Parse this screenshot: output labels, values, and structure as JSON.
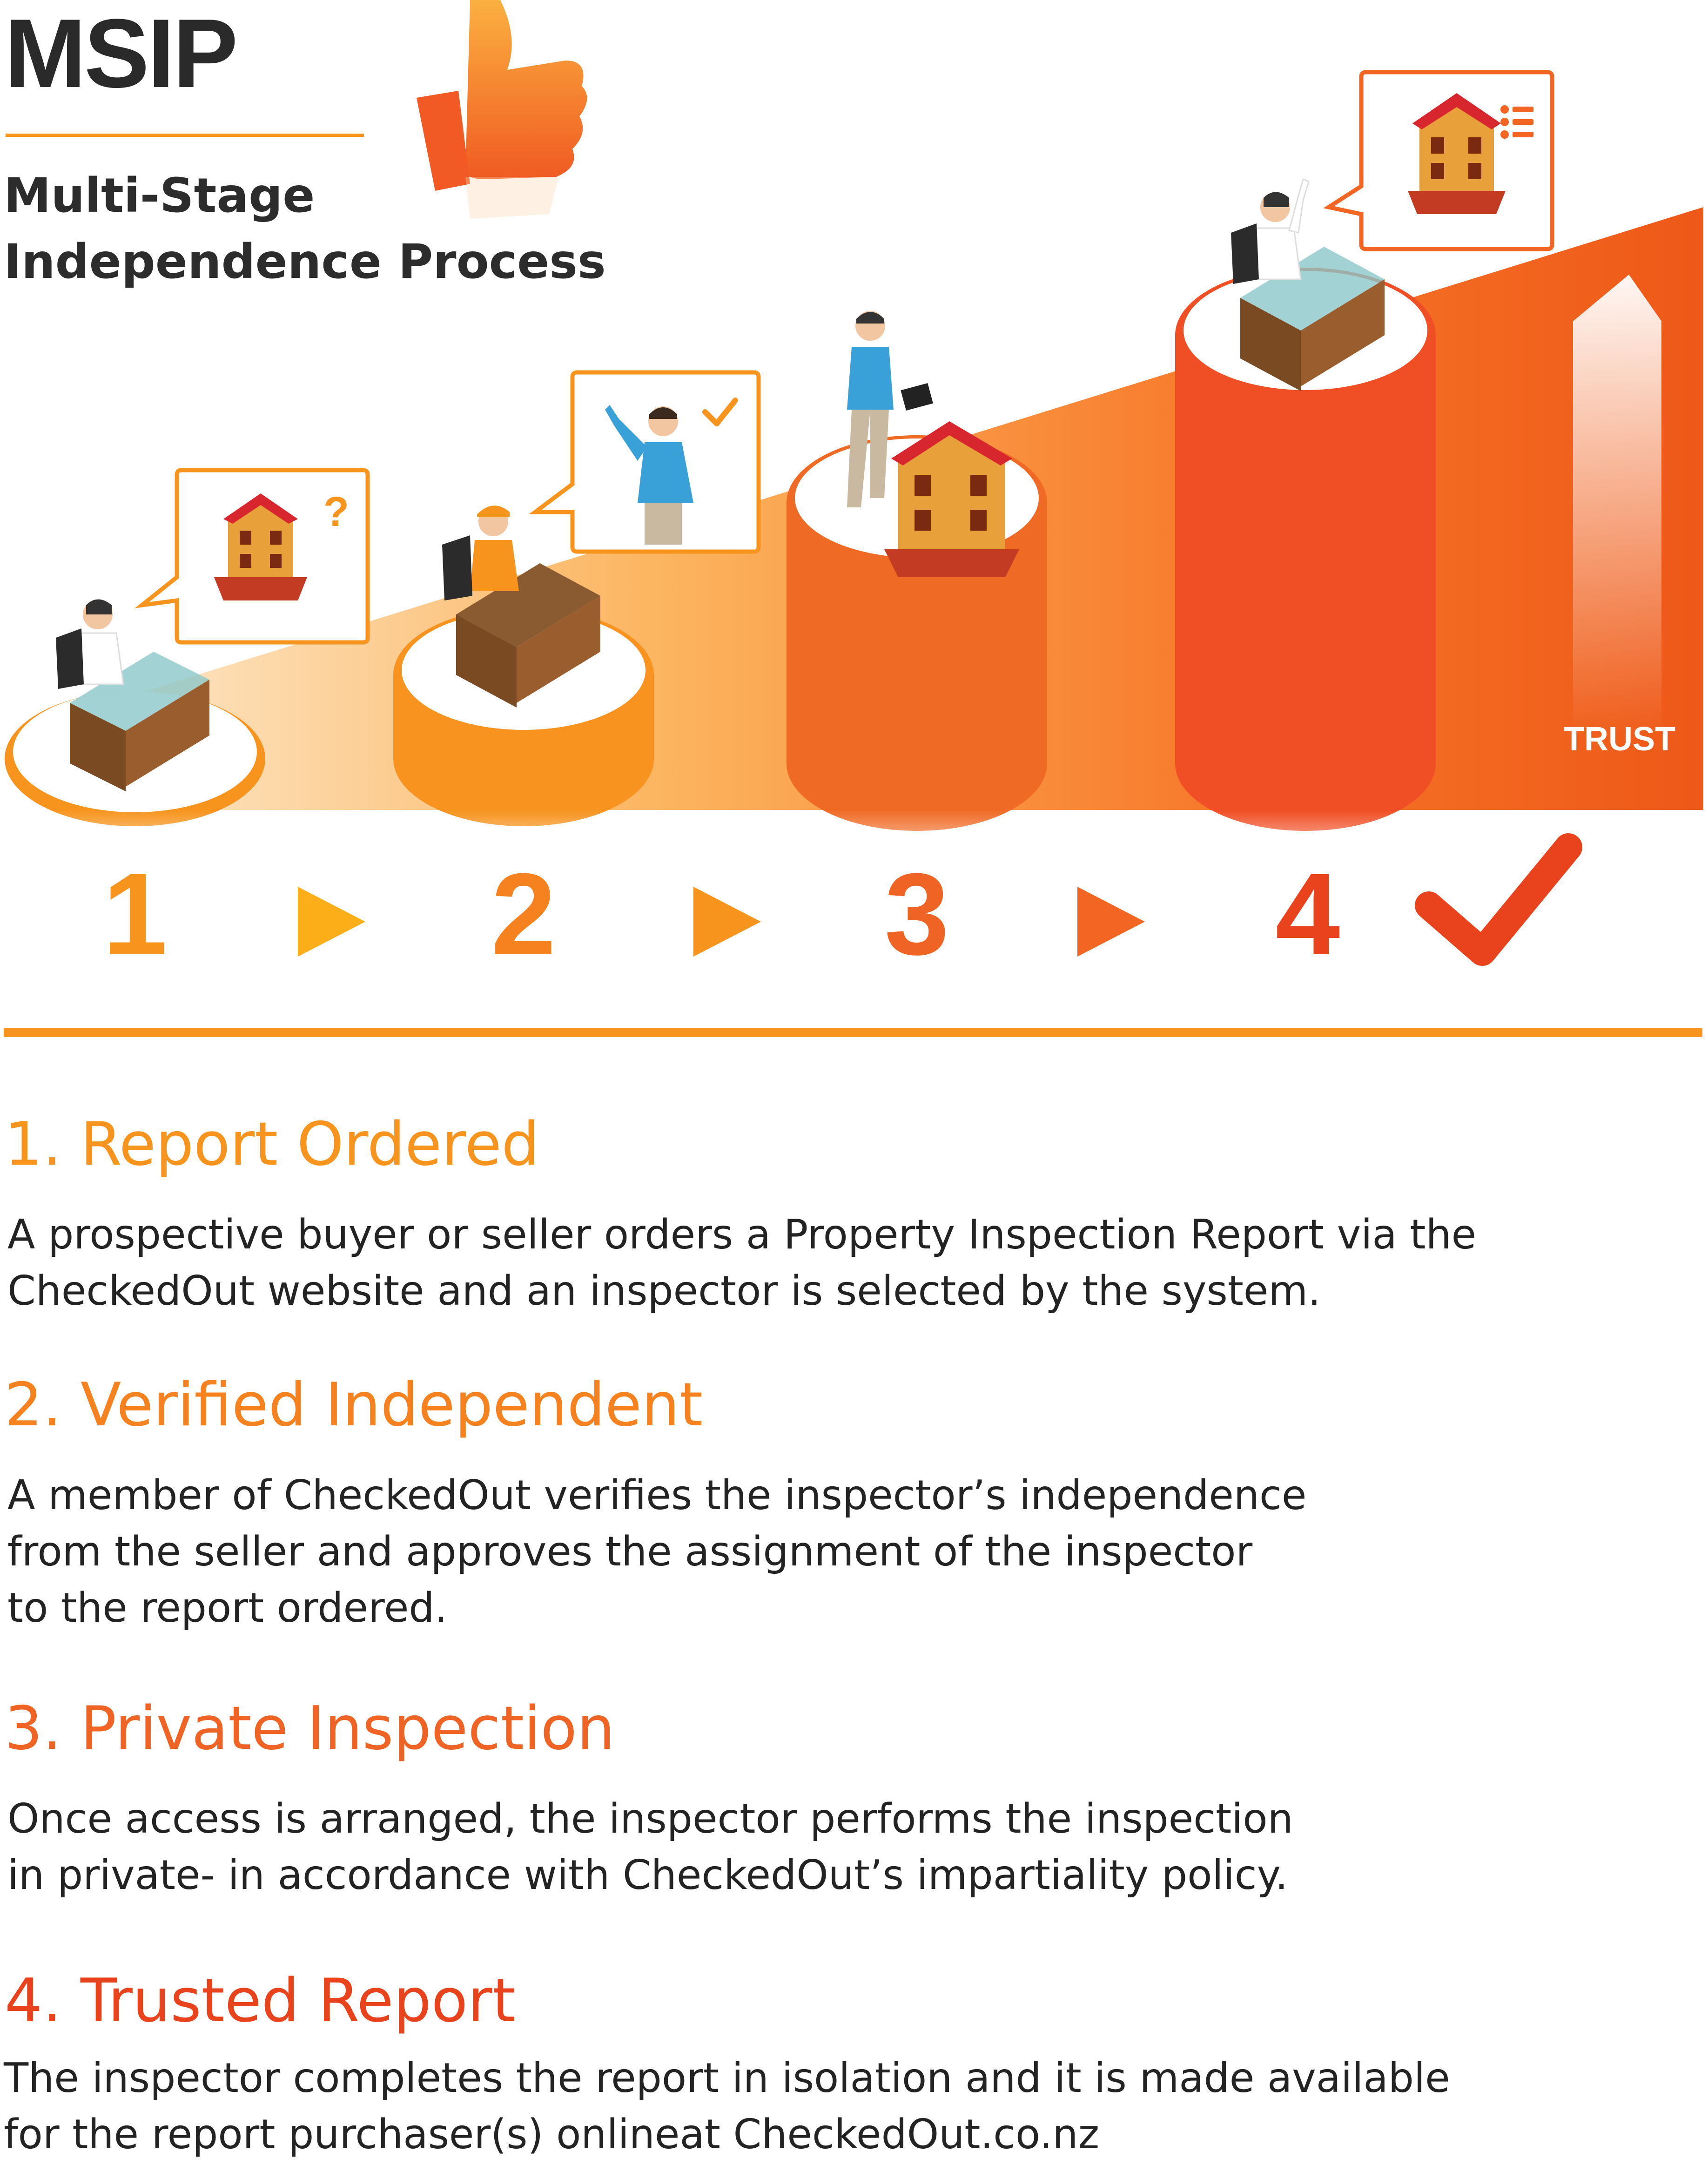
{
  "header": {
    "title": "MSIP",
    "subtitle_lines": [
      "Multi-Stage",
      "Independence Process"
    ]
  },
  "process": {
    "steps": [
      "1",
      "2",
      "3",
      "4"
    ],
    "trust_label": "TRUST"
  },
  "stages": [
    {
      "heading": "1. Report Ordered",
      "lines": [
        "A prospective buyer or seller orders a Property Inspection Report via the",
        "CheckedOut website and an inspector is selected by the system."
      ]
    },
    {
      "heading": "2. Verified Independent",
      "lines": [
        "A member of CheckedOut verifies the inspector’s independence",
        "from the seller and approves the assignment of the inspector",
        "to the report ordered."
      ]
    },
    {
      "heading": "3. Private Inspection",
      "lines": [
        "Once access is arranged, the inspector performs the inspection",
        "in private- in accordance with CheckedOut’s impartiality policy."
      ]
    },
    {
      "heading": "4. Trusted Report",
      "lines": [
        "The inspector completes the report in isolation and it is made available",
        "for the report purchaser(s) onlineat CheckedOut.co.nz"
      ]
    }
  ],
  "colors": {
    "accent": "#f7941d",
    "step1": "#f7941d",
    "step2": "#f5821f",
    "step3": "#ef6424",
    "step4": "#e8431d",
    "text": "#222222"
  },
  "icons": [
    "thumbs-up-icon",
    "house-icon",
    "question-mark-icon",
    "checkmark-icon",
    "list-icon",
    "arrow-right-icon",
    "arrow-up-icon"
  ]
}
